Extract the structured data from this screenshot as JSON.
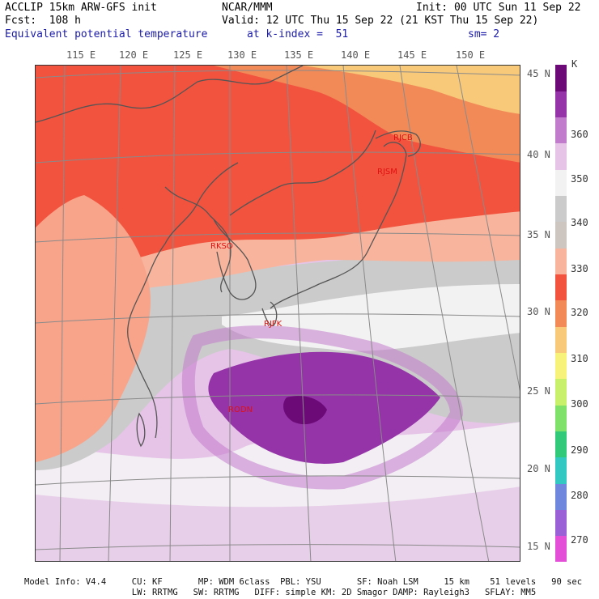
{
  "header": {
    "left_line1": "ACCLIP 15km ARW-GFS init",
    "left_line2": "Fcst:  108 h",
    "left_line3": "Equivalent potential temperature",
    "center_line1": "NCAR/MMM",
    "center_line2": "Valid: 12 UTC Thu 15 Sep 22 (21 KST Thu 15 Sep 22)",
    "center_line3": "at k-index =  51",
    "right_line1": "Init: 00 UTC Sun 11 Sep 22",
    "right_line3": "sm= 2"
  },
  "map": {
    "lon_labels": [
      "115 E",
      "120 E",
      "125 E",
      "130 E",
      "135 E",
      "140 E",
      "145 E",
      "150 E"
    ],
    "lat_labels": [
      "45 N",
      "40 N",
      "35 N",
      "30 N",
      "25 N",
      "20 N",
      "15 N"
    ],
    "stations": [
      "RJCB",
      "RJSM",
      "RKSO",
      "RJFK",
      "RODN"
    ]
  },
  "legend": {
    "unit": "K",
    "tick_labels": [
      "360",
      "350",
      "340",
      "330",
      "320",
      "310",
      "300",
      "290",
      "280",
      "270"
    ],
    "colors": [
      "#e44fd8",
      "#9a60d6",
      "#6f87dc",
      "#33c8c2",
      "#33c97a",
      "#7fe06a",
      "#c8f06a",
      "#f6f27a",
      "#f8c978",
      "#f28a58",
      "#f2533f",
      "#f8b49c",
      "#cdc6c0",
      "#cbcbcb",
      "#f2f2f2",
      "#e6c4e8",
      "#c27ccc",
      "#9534a8",
      "#6c0a78"
    ]
  },
  "footer": {
    "line1": "Model Info: V4.4     CU: KF       MP: WDM 6class  PBL: YSU       SF: Noah LSM     15 km    51 levels   90 sec",
    "line2": "                     LW: RRTMG   SW: RRTMG   DIFF: simple KM: 2D Smagor DAMP: Rayleigh3   SFLAY: MM5"
  }
}
